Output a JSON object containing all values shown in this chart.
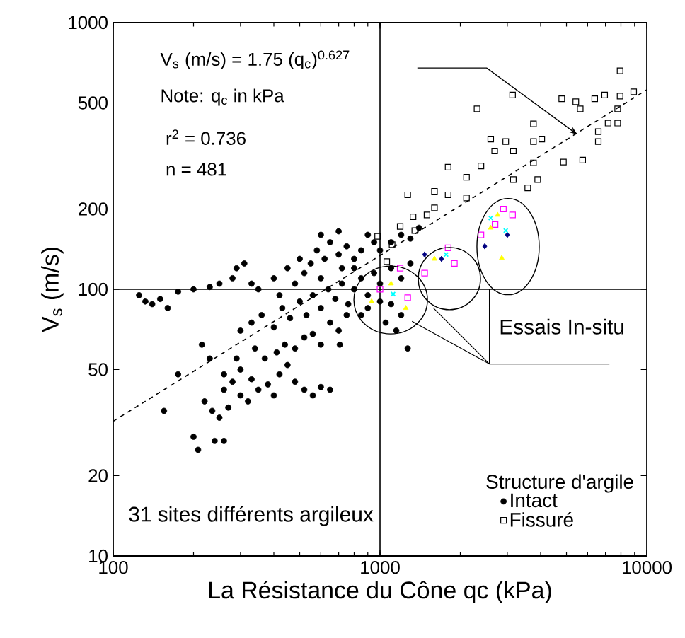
{
  "chart_data": {
    "type": "scatter",
    "xlabel": "La Résistance du Cône  qc (kPa)",
    "ylabel": "V$_{s}$ (m/s)",
    "legend_title": "Structure d'argile",
    "legend": "bottom right",
    "log": "xy",
    "xlim": [
      100,
      10000
    ],
    "ylim": [
      10,
      1000
    ],
    "xticks": [
      100,
      1000,
      10000
    ],
    "yticks": [
      10,
      20,
      50,
      100,
      200,
      500,
      1000
    ],
    "grid": false,
    "annotations": [
      "V$_{s}$ (m/s) = 1.75 (q$_{c}$)$^{0.627}$",
      "Note:  q$_{c}$ in kPa",
      "r$^{2}$ = 0.736",
      "n = 481",
      "Essais In-situ",
      "31 sites différents argileux"
    ],
    "ref_lines": [
      {
        "axis": "x",
        "value": 1000,
        "color": "#000000"
      },
      {
        "axis": "y",
        "value": 100,
        "color": "#000000"
      }
    ],
    "series": [
      {
        "name": "Intact",
        "type": "scatter",
        "marker": "circle",
        "color": "#000000",
        "x": [
          125,
          132,
          140,
          150,
          160,
          175,
          155,
          175,
          200,
          208,
          240,
          260,
          215,
          230,
          200,
          230,
          250,
          280,
          290,
          310,
          330,
          220,
          235,
          250,
          270,
          260,
          280,
          300,
          320,
          300,
          330,
          350,
          380,
          400,
          420,
          450,
          480,
          520,
          560,
          600,
          650,
          260,
          290,
          340,
          370,
          410,
          440,
          480,
          520,
          560,
          600,
          300,
          330,
          360,
          400,
          430,
          460,
          500,
          530,
          560,
          600,
          640,
          680,
          720,
          760,
          800,
          850,
          900,
          950,
          1000,
          1100,
          1200,
          1300,
          350,
          400,
          420,
          450,
          480,
          500,
          520,
          550,
          580,
          600,
          620,
          650,
          700,
          720,
          750,
          800,
          850,
          900,
          950,
          1000,
          1100,
          1200,
          1300,
          1400,
          600,
          700,
          800,
          650,
          700,
          750,
          850,
          900,
          1000,
          1100,
          1200,
          1050,
          1150,
          1270,
          707
        ],
        "values": [
          95,
          90,
          88,
          92,
          85,
          98,
          35,
          48,
          28,
          25,
          27,
          27,
          62,
          55,
          100,
          102,
          105,
          110,
          120,
          125,
          105,
          38,
          35,
          33,
          36,
          42,
          45,
          40,
          38,
          50,
          46,
          42,
          44,
          40,
          48,
          52,
          45,
          42,
          40,
          43,
          42,
          48,
          55,
          60,
          55,
          58,
          62,
          60,
          66,
          68,
          62,
          70,
          75,
          80,
          72,
          85,
          78,
          90,
          80,
          95,
          85,
          100,
          92,
          105,
          88,
          100,
          110,
          95,
          115,
          105,
          120,
          110,
          125,
          100,
          110,
          95,
          120,
          105,
          130,
          115,
          125,
          140,
          110,
          130,
          150,
          135,
          120,
          145,
          130,
          140,
          160,
          150,
          140,
          150,
          160,
          155,
          170,
          160,
          165,
          120,
          75,
          70,
          80,
          80,
          85,
          90,
          88,
          80,
          75,
          70,
          60,
          62
        ]
      },
      {
        "name": "Fissuré",
        "type": "scatter",
        "marker": "square",
        "color": "#000000",
        "x": [
          7940,
          3140,
          2310,
          4800,
          5420,
          6380,
          6950,
          7940,
          8930,
          7780,
          6580,
          5750,
          4870,
          3760,
          3760,
          4040,
          2600,
          2690,
          3160,
          1800,
          2110,
          2390,
          3760,
          3900,
          1600,
          1800,
          2110,
          1270,
          1330,
          1500,
          1600,
          1190,
          1350,
          1110,
          980,
          1060,
          3160,
          3580,
          2960,
          5630,
          7780,
          6580,
          7160
        ],
        "values": [
          660,
          535,
          475,
          518,
          505,
          518,
          535,
          530,
          550,
          420,
          358,
          305,
          300,
          417,
          358,
          366,
          366,
          330,
          330,
          287,
          263,
          290,
          298,
          258,
          233,
          226,
          220,
          226,
          187,
          190,
          202,
          172,
          166,
          147,
          158,
          127,
          258,
          240,
          358,
          475,
          475,
          390,
          420
        ]
      },
      {
        "type": "scatter",
        "marker": "square",
        "color": "#ff00ff",
        "x": [
          1800,
          2390,
          3140,
          1190,
          1470,
          1270,
          1000,
          1900,
          2700,
          2900
        ],
        "values": [
          143,
          160,
          190,
          120,
          115,
          93,
          100,
          125,
          175,
          200
        ]
      },
      {
        "type": "scatter",
        "marker": "triangle",
        "color": "#ffff00",
        "x": [
          930,
          1100,
          1600,
          2860,
          2760,
          1250,
          2600
        ],
        "values": [
          90,
          105,
          130,
          131,
          190,
          85,
          170
        ]
      },
      {
        "type": "scatter",
        "marker": "diamond",
        "color": "#000080",
        "x": [
          1470,
          2470,
          1700,
          3000
        ],
        "values": [
          135,
          145,
          130,
          160
        ]
      },
      {
        "type": "scatter",
        "marker": "cross",
        "color": "#00ffff",
        "x": [
          1120,
          1770,
          2960,
          2600
        ],
        "values": [
          96,
          135,
          166,
          185
        ]
      },
      {
        "type": "line",
        "marker": "none",
        "line_style": "dashed",
        "color": "#000000",
        "x": [
          100,
          10000
        ],
        "values": [
          32,
          560
        ]
      }
    ]
  }
}
